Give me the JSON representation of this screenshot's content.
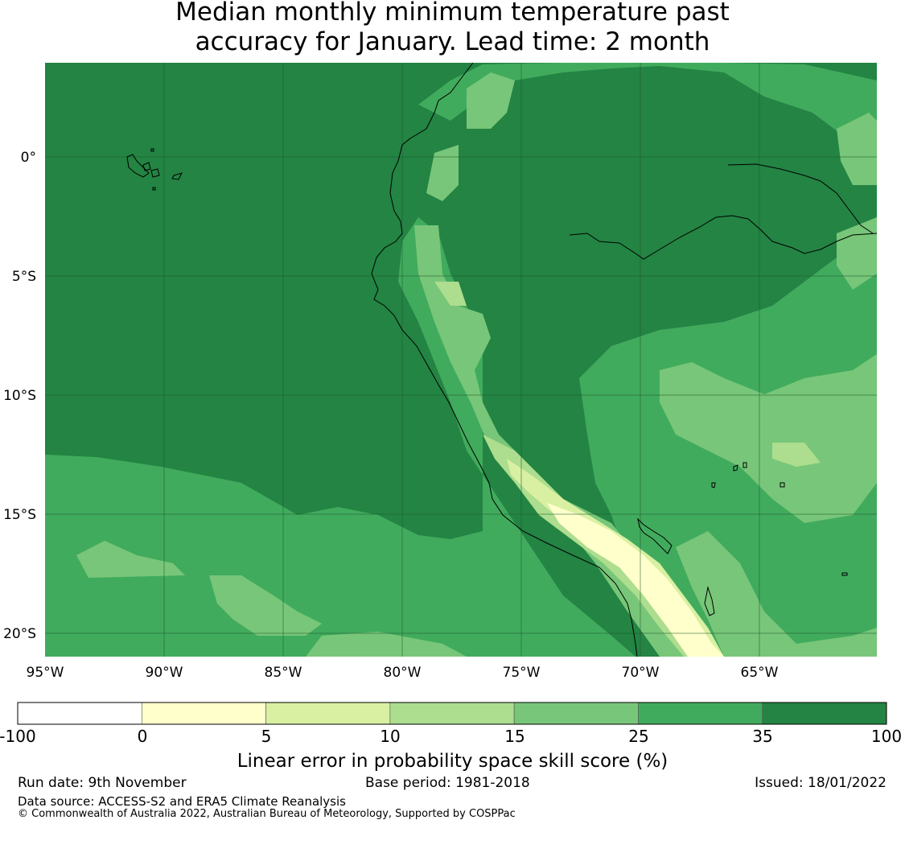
{
  "title": {
    "line1": "Median monthly minimum temperature past",
    "line2": "accuracy for January. Lead time: 2 month"
  },
  "map": {
    "lon_ticks": [
      "95°W",
      "90°W",
      "85°W",
      "80°W",
      "75°W",
      "70°W",
      "65°W"
    ],
    "lat_ticks": [
      "0°",
      "5°S",
      "10°S",
      "15°S",
      "20°S"
    ]
  },
  "colorbar": {
    "label": "Linear error in probability space skill score (%)",
    "ticks": [
      "-100",
      "0",
      "5",
      "10",
      "15",
      "25",
      "35",
      "100"
    ],
    "colors": [
      "#ffffff",
      "#ffffcc",
      "#d9f0a3",
      "#addd8e",
      "#78c679",
      "#41ab5d",
      "#238443"
    ]
  },
  "footer": {
    "run_date": "Run date: 9th November",
    "base_period": "Base period: 1981-2018",
    "issued": "Issued: 18/01/2022",
    "data_source": "Data source: ACCESS-S2 and ERA5 Climate Reanalysis",
    "copyright": "© Commonwealth of Australia 2022, Australian Bureau of Meteorology, Supported by COSPPac"
  }
}
